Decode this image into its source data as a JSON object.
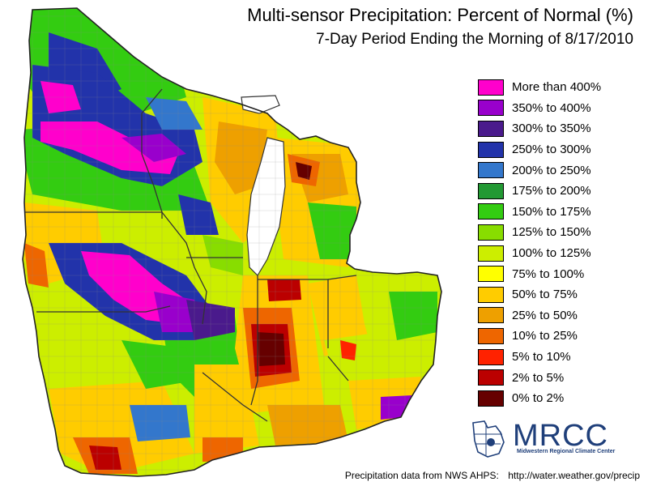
{
  "title": "Multi-sensor Precipitation: Percent of Normal (%)",
  "subtitle": "7-Day Period Ending the Morning of 8/17/2010",
  "legend": [
    {
      "label": "More than 400%",
      "color": "#ff00cc"
    },
    {
      "label": "350% to 400%",
      "color": "#9900cc"
    },
    {
      "label": "300% to 350%",
      "color": "#4a1a8c"
    },
    {
      "label": "250% to 300%",
      "color": "#2233aa"
    },
    {
      "label": "200% to 250%",
      "color": "#3377cc"
    },
    {
      "label": "175% to 200%",
      "color": "#229933"
    },
    {
      "label": "150% to 175%",
      "color": "#33cc11"
    },
    {
      "label": "125% to 150%",
      "color": "#88dd00"
    },
    {
      "label": "100% to 125%",
      "color": "#ccee00"
    },
    {
      "label": "75% to 100%",
      "color": "#ffff00"
    },
    {
      "label": "50% to 75%",
      "color": "#ffcc00"
    },
    {
      "label": "25% to 50%",
      "color": "#eea000"
    },
    {
      "label": "10% to 25%",
      "color": "#ee6600"
    },
    {
      "label": "5% to 10%",
      "color": "#ff2200"
    },
    {
      "label": "2% to 5%",
      "color": "#bb0000"
    },
    {
      "label": "0% to 2%",
      "color": "#660000"
    }
  ],
  "logo": {
    "name": "MRCC",
    "subtitle": "Midwestern Regional Climate Center"
  },
  "footer": {
    "source": "Precipitation data from NWS AHPS:",
    "url": "http://water.weather.gov/precip"
  },
  "colors": {
    "lake": "#ffffff",
    "border": "#333333",
    "county_line": "#888888"
  }
}
